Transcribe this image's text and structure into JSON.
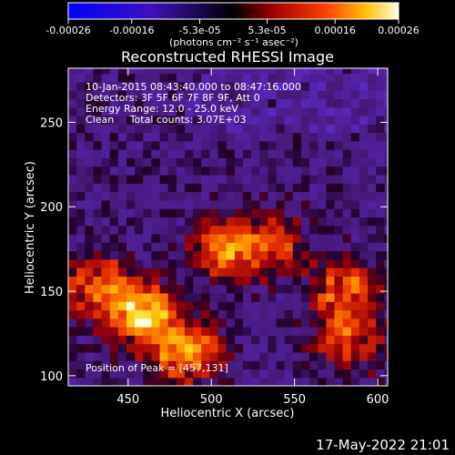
{
  "chart_data": {
    "type": "heatmap",
    "title": "Reconstructed RHESSI Image",
    "xlabel": "Heliocentric X (arcsec)",
    "ylabel": "Heliocentric Y (arcsec)",
    "xlim": [
      414,
      606
    ],
    "ylim": [
      94,
      282
    ],
    "x_ticks": [
      450,
      500,
      550,
      600
    ],
    "y_ticks": [
      100,
      150,
      200,
      250
    ],
    "colorbar": {
      "label": "(photons cm⁻² s⁻¹ asec⁻²)",
      "range": [
        -0.00026,
        0.00026
      ],
      "ticks": [
        "-0.00026",
        "-0.00016",
        "-5.3e-05",
        "5.3e-05",
        "0.00016",
        "0.00026"
      ],
      "tick_values": [
        -0.00026,
        -0.00016,
        -5.3e-05,
        5.3e-05,
        0.00016,
        0.00026
      ]
    },
    "info_lines": [
      "10-Jan-2015 08:43:40.000 to 08:47:16.000",
      "Detectors: 3F 5F 6F 7F 8F 9F, Att 0",
      "Energy Range: 12.0 - 25.0 keV",
      "Clean     Total counts: 3.07E+03"
    ],
    "peak_annotation": "Position of Peak = [457,131]",
    "peak_position": [
      457,
      131
    ],
    "bright_regions": [
      {
        "x": 455,
        "y": 135,
        "value": 0.00026
      },
      {
        "x": 482,
        "y": 112,
        "value": 0.00022
      },
      {
        "x": 505,
        "y": 172,
        "value": 0.00018
      },
      {
        "x": 430,
        "y": 152,
        "value": 0.00017
      },
      {
        "x": 578,
        "y": 148,
        "value": 0.00017
      },
      {
        "x": 580,
        "y": 118,
        "value": 0.00014
      },
      {
        "x": 535,
        "y": 175,
        "value": 0.00012
      }
    ]
  },
  "colors": {
    "background": "#000000",
    "negative": "#1a00ff",
    "zero": "#5a1a8c",
    "positive_mid": "#e83000",
    "positive_high": "#ffe600"
  },
  "footer": {
    "timestamp": "17-May-2022 21:01"
  }
}
